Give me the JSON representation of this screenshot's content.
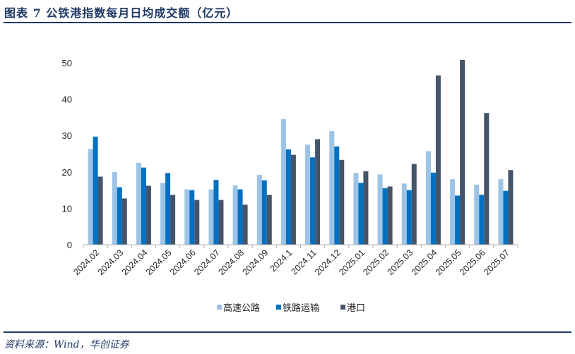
{
  "header": {
    "title": "图表 7   公铁港指数每月日均成交额（亿元）"
  },
  "footer": {
    "source": "资料来源：Wind，华创证券"
  },
  "chart_data": {
    "type": "bar",
    "title": "公铁港指数每月日均成交额（亿元）",
    "xlabel": "",
    "ylabel": "",
    "ylim": [
      0,
      50
    ],
    "yticks": [
      "0",
      "10",
      "20",
      "30",
      "40",
      "50"
    ],
    "grid": false,
    "legend_position": "bottom",
    "categories": [
      "2024.02",
      "2024.03",
      "2024.04",
      "2024.05",
      "2024.06",
      "2024.07",
      "2024.08",
      "2024.09",
      "2024.1",
      "2024.11",
      "2024.12",
      "2025.01",
      "2025.02",
      "2025.03",
      "2025.04",
      "2025.05",
      "2025.06",
      "2025.07"
    ],
    "series": [
      {
        "name": "高速公路",
        "color": "#9dc3e6",
        "values": [
          26.3,
          20.0,
          22.5,
          17.0,
          15.2,
          15.2,
          16.3,
          19.2,
          34.5,
          27.5,
          31.2,
          19.7,
          19.3,
          16.8,
          25.7,
          18.0,
          16.5,
          18.0
        ]
      },
      {
        "name": "铁路运输",
        "color": "#0070c0",
        "values": [
          29.7,
          15.8,
          21.2,
          19.7,
          15.0,
          17.8,
          15.2,
          17.7,
          26.2,
          24.0,
          27.0,
          17.0,
          15.5,
          15.0,
          19.8,
          13.5,
          13.7,
          14.8
        ]
      },
      {
        "name": "港口",
        "color": "#44546a",
        "values": [
          18.7,
          12.7,
          16.2,
          13.7,
          12.3,
          12.3,
          11.0,
          13.7,
          24.7,
          29.0,
          23.3,
          20.2,
          16.0,
          22.2,
          46.5,
          50.8,
          36.2,
          20.5
        ]
      }
    ]
  }
}
